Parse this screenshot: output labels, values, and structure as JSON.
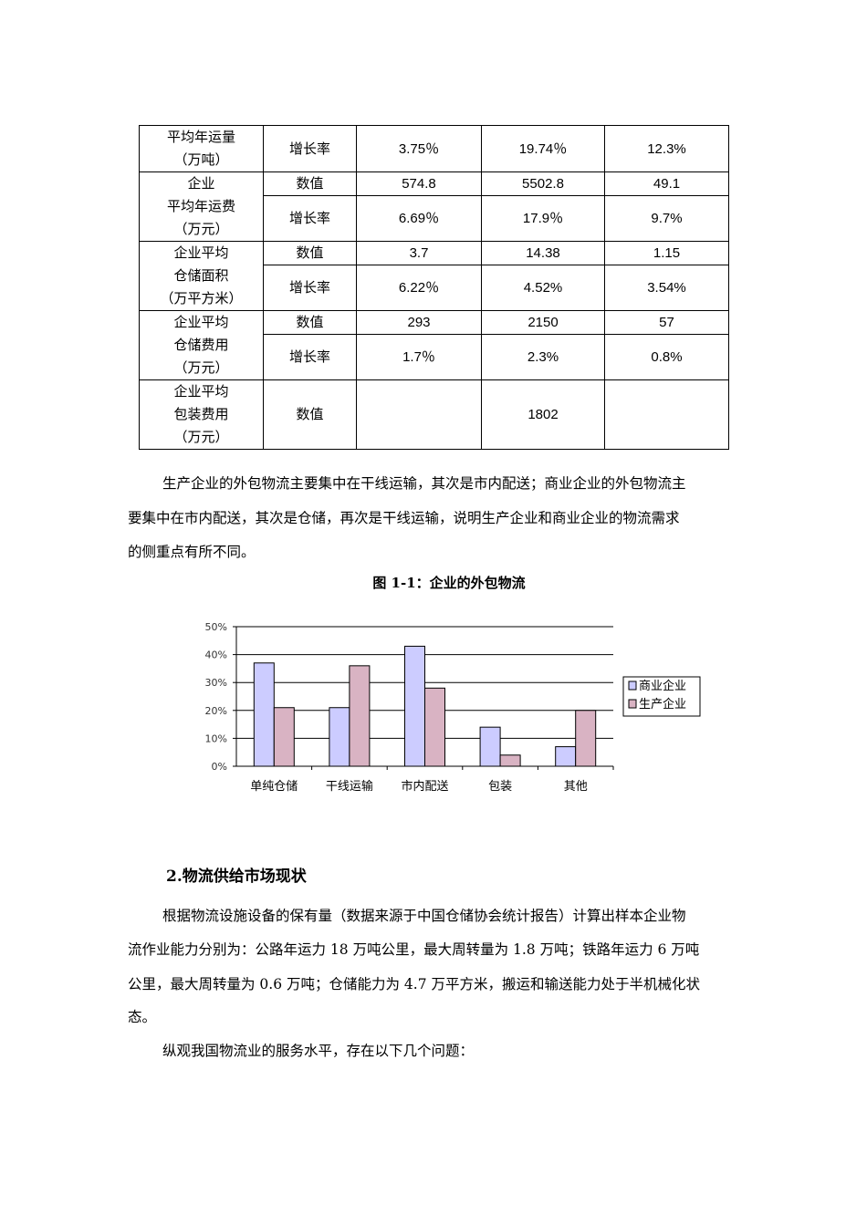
{
  "table": {
    "rows": [
      {
        "label": "平均年运量（万吨）",
        "sub": [
          {
            "metric": "增长率",
            "values": [
              "3.75％",
              "19.74％",
              "12.3%"
            ]
          }
        ]
      },
      {
        "label": "企业平均年运费（万元）",
        "sub": [
          {
            "metric": "数值",
            "values": [
              "574.8",
              "5502.8",
              "49.1"
            ]
          },
          {
            "metric": "增长率",
            "values": [
              "6.69％",
              "17.9％",
              "9.7%"
            ]
          }
        ]
      },
      {
        "label": "企业平均仓储面积（万平方米）",
        "sub": [
          {
            "metric": "数值",
            "values": [
              "3.7",
              "14.38",
              "1.15"
            ]
          },
          {
            "metric": "增长率",
            "values": [
              "6.22％",
              "4.52%",
              "3.54%"
            ]
          }
        ]
      },
      {
        "label": "企业平均仓储费用（万元）",
        "sub": [
          {
            "metric": "数值",
            "values": [
              "293",
              "2150",
              "57"
            ]
          },
          {
            "metric": "增长率",
            "values": [
              "1.7％",
              "2.3%",
              "0.8%"
            ]
          }
        ]
      },
      {
        "label": "企业平均包装费用（万元）",
        "sub": [
          {
            "metric": "数值",
            "values": [
              "",
              "1802",
              ""
            ]
          }
        ]
      }
    ],
    "label_lines": [
      [
        "平均年运量",
        "（万吨）"
      ],
      [
        "企业",
        "平均年运费",
        "（万元）"
      ],
      [
        "企业平均",
        "仓储面积",
        "（万平方米）"
      ],
      [
        "企业平均",
        "仓储费用",
        "（万元）"
      ],
      [
        "企业平均",
        "包装费用",
        "（万元）"
      ]
    ]
  },
  "para1": [
    "生产企业的外包物流主要集中在干线运输，其次是市内配送；商业企业的外包物流主",
    "要集中在市内配送，其次是仓储，再次是干线运输，说明生产企业和商业企业的物流需求",
    "的侧重点有所不同。"
  ],
  "figure_caption": "图 1-1：企业的外包物流",
  "chart_data": {
    "type": "bar",
    "categories": [
      "单纯仓储",
      "干线运输",
      "市内配送",
      "包装",
      "其他"
    ],
    "series": [
      {
        "name": "商业企业",
        "color": "#ccccff",
        "values": [
          37,
          21,
          43,
          14,
          7
        ]
      },
      {
        "name": "生产企业",
        "color": "#d9b3c3",
        "values": [
          21,
          36,
          28,
          4,
          20
        ]
      }
    ],
    "yticks": [
      "0%",
      "10%",
      "20%",
      "30%",
      "40%",
      "50%"
    ],
    "ylim": [
      0,
      50
    ],
    "grid": true,
    "legend": "right"
  },
  "heading2": "2.物流供给市场现状",
  "para2": [
    "根据物流设施设备的保有量（数据来源于中国仓储协会统计报告）计算出样本企业物",
    "流作业能力分别为：公路年运力 18 万吨公里，最大周转量为 1.8 万吨；铁路年运力 6 万吨",
    "公里，最大周转量为 0.6 万吨；仓储能力为 4.7 万平方米，搬运和输送能力处于半机械化状",
    "态。"
  ],
  "para3": "纵观我国物流业的服务水平，存在以下几个问题："
}
